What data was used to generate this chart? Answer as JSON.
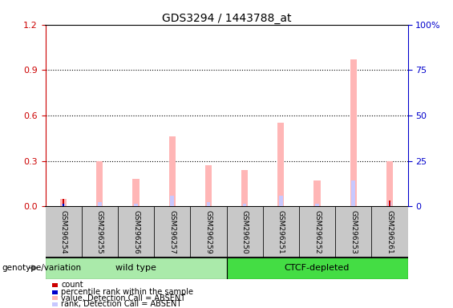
{
  "title": "GDS3294 / 1443788_at",
  "samples": [
    "GSM296254",
    "GSM296255",
    "GSM296256",
    "GSM296257",
    "GSM296259",
    "GSM296250",
    "GSM296251",
    "GSM296252",
    "GSM296253",
    "GSM296261"
  ],
  "pink_bars": [
    0.05,
    0.3,
    0.18,
    0.46,
    0.27,
    0.24,
    0.55,
    0.17,
    0.97,
    0.3
  ],
  "blue_bars": [
    0.02,
    0.03,
    0.02,
    0.07,
    0.03,
    0.02,
    0.07,
    0.02,
    0.17,
    0.03
  ],
  "red_bars": [
    0.05,
    0.0,
    0.0,
    0.0,
    0.0,
    0.0,
    0.0,
    0.0,
    0.0,
    0.04
  ],
  "dark_blue_bars": [
    0.02,
    0.0,
    0.0,
    0.0,
    0.0,
    0.0,
    0.0,
    0.0,
    0.0,
    0.0
  ],
  "wt_color": "#AAEAAA",
  "ctcf_color": "#44DD44",
  "sample_box_color": "#C8C8C8",
  "ylim_left": [
    0,
    1.2
  ],
  "ylim_right": [
    0,
    100
  ],
  "yticks_left": [
    0,
    0.3,
    0.6,
    0.9,
    1.2
  ],
  "yticks_right": [
    0,
    25,
    50,
    75,
    100
  ],
  "left_axis_color": "#CC0000",
  "right_axis_color": "#0000CC",
  "legend_items": [
    {
      "label": "count",
      "color": "#CC0000"
    },
    {
      "label": "percentile rank within the sample",
      "color": "#0000CC"
    },
    {
      "label": "value, Detection Call = ABSENT",
      "color": "#FFB6B6"
    },
    {
      "label": "rank, Detection Call = ABSENT",
      "color": "#C8C8FF"
    }
  ],
  "genotype_label": "genotype/variation"
}
